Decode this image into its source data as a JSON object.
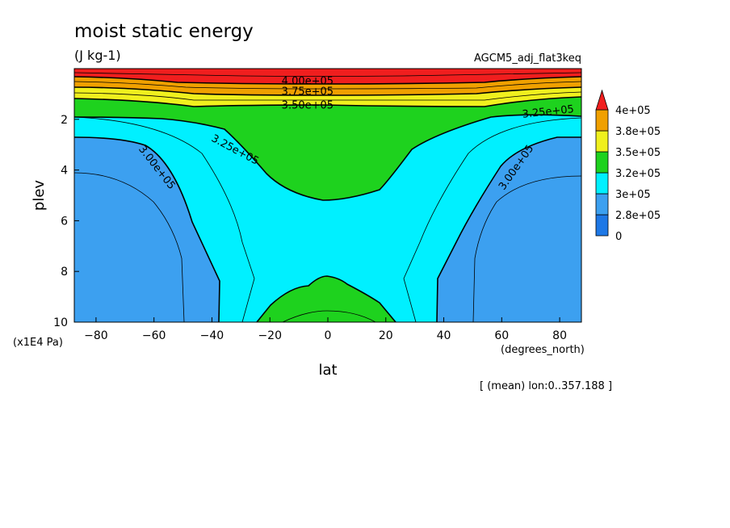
{
  "chart_data": {
    "type": "heatmap",
    "title": "moist static energy",
    "units": "(J kg-1)",
    "experiment": "AGCM5_adj_flat3keq",
    "xlabel": "lat",
    "x_units": "(degrees_north)",
    "ylabel": "plev",
    "y_units": "(x1E4 Pa)",
    "footer_note": "[ (mean) lon:0..357.188 ]",
    "xlim": [
      -87.5,
      87.5
    ],
    "ylim": [
      10,
      0
    ],
    "x_ticks": [
      -80,
      -60,
      -40,
      -20,
      0,
      20,
      40,
      60,
      80
    ],
    "y_ticks": [
      2,
      4,
      6,
      8,
      10
    ],
    "colorbar": {
      "labels": [
        "0",
        "2.8e+05",
        "3e+05",
        "3.2e+05",
        "3.5e+05",
        "3.8e+05",
        "4e+05"
      ],
      "colors": [
        "#1e78e6",
        "#3ca0f0",
        "#00f0ff",
        "#1ed21e",
        "#f0f01e",
        "#f0a000",
        "#f01e1e"
      ]
    },
    "contour_labels": [
      {
        "text": "4.00e+05",
        "lat": -7,
        "plev": 0.5
      },
      {
        "text": "3.75e+05",
        "lat": -7,
        "plev": 0.9
      },
      {
        "text": "3.50e+05",
        "lat": -7,
        "plev": 1.45
      },
      {
        "text": "3.25e+05",
        "lat": 76,
        "plev": 1.7
      },
      {
        "text": "3.25e+05",
        "lat": -32,
        "plev": 3.2
      },
      {
        "text": "3.00e+05",
        "lat": -59,
        "plev": 3.9
      },
      {
        "text": "3.00e+05",
        "lat": 65,
        "plev": 3.9
      }
    ]
  }
}
